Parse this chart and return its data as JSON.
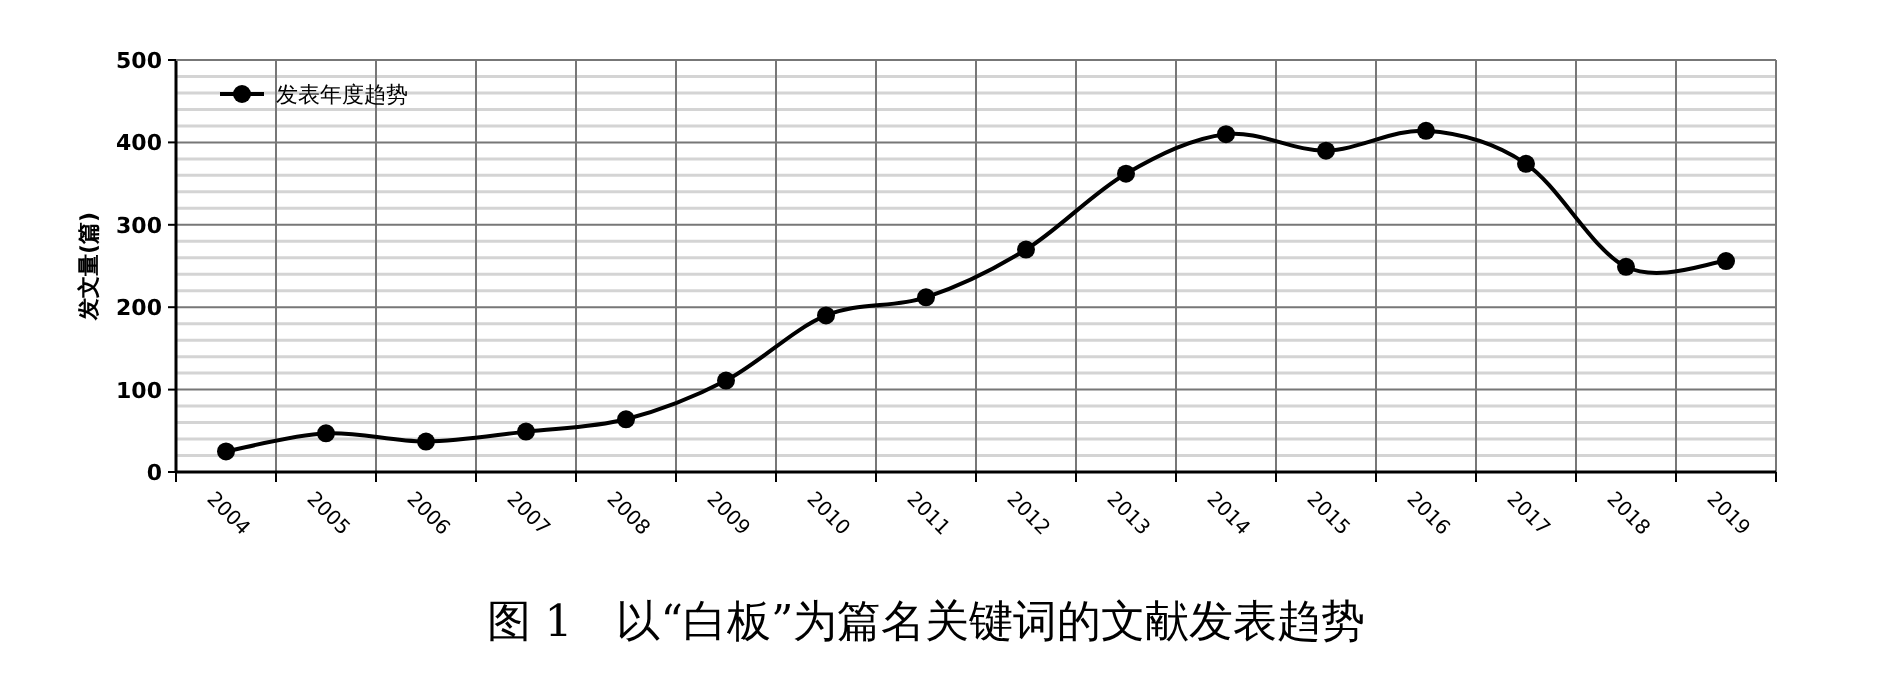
{
  "chart_data": {
    "type": "line",
    "title": "图 1　以“白板”为篇名关键词的文献发表趋势",
    "ylabel": "发文量(篇)",
    "categories": [
      "2004",
      "2005",
      "2006",
      "2007",
      "2008",
      "2009",
      "2010",
      "2011",
      "2012",
      "2013",
      "2014",
      "2015",
      "2016",
      "2017",
      "2018",
      "2019"
    ],
    "series": [
      {
        "name": "发表年度趋势",
        "color": "#000000",
        "values": [
          25,
          47,
          37,
          49,
          64,
          111,
          190,
          212,
          270,
          362,
          410,
          390,
          414,
          374,
          249,
          256
        ]
      }
    ],
    "ylim": [
      0,
      500
    ],
    "yticks": [
      0,
      {
        "value": 20,
        "label": null
      },
      {
        "value": 40,
        "label": null
      },
      {
        "value": 60,
        "label": null
      },
      {
        "value": 80,
        "label": null
      },
      100,
      {
        "value": 120,
        "label": null
      },
      {
        "value": 140,
        "label": null
      },
      {
        "value": 160,
        "label": null
      },
      {
        "value": 180,
        "label": null
      },
      200,
      {
        "value": 220,
        "label": null
      },
      {
        "value": 240,
        "label": null
      },
      {
        "value": 260,
        "label": null
      },
      {
        "value": 280,
        "label": null
      },
      300,
      {
        "value": 320,
        "label": null
      },
      {
        "value": 340,
        "label": null
      },
      {
        "value": 360,
        "label": null
      },
      {
        "value": 380,
        "label": null
      },
      400,
      {
        "value": 420,
        "label": null
      },
      {
        "value": 440,
        "label": null
      },
      {
        "value": 460,
        "label": null
      },
      {
        "value": 480,
        "label": null
      },
      500
    ],
    "grid": true,
    "legend": "top left",
    "marker": "circle",
    "line_style": "solid"
  }
}
